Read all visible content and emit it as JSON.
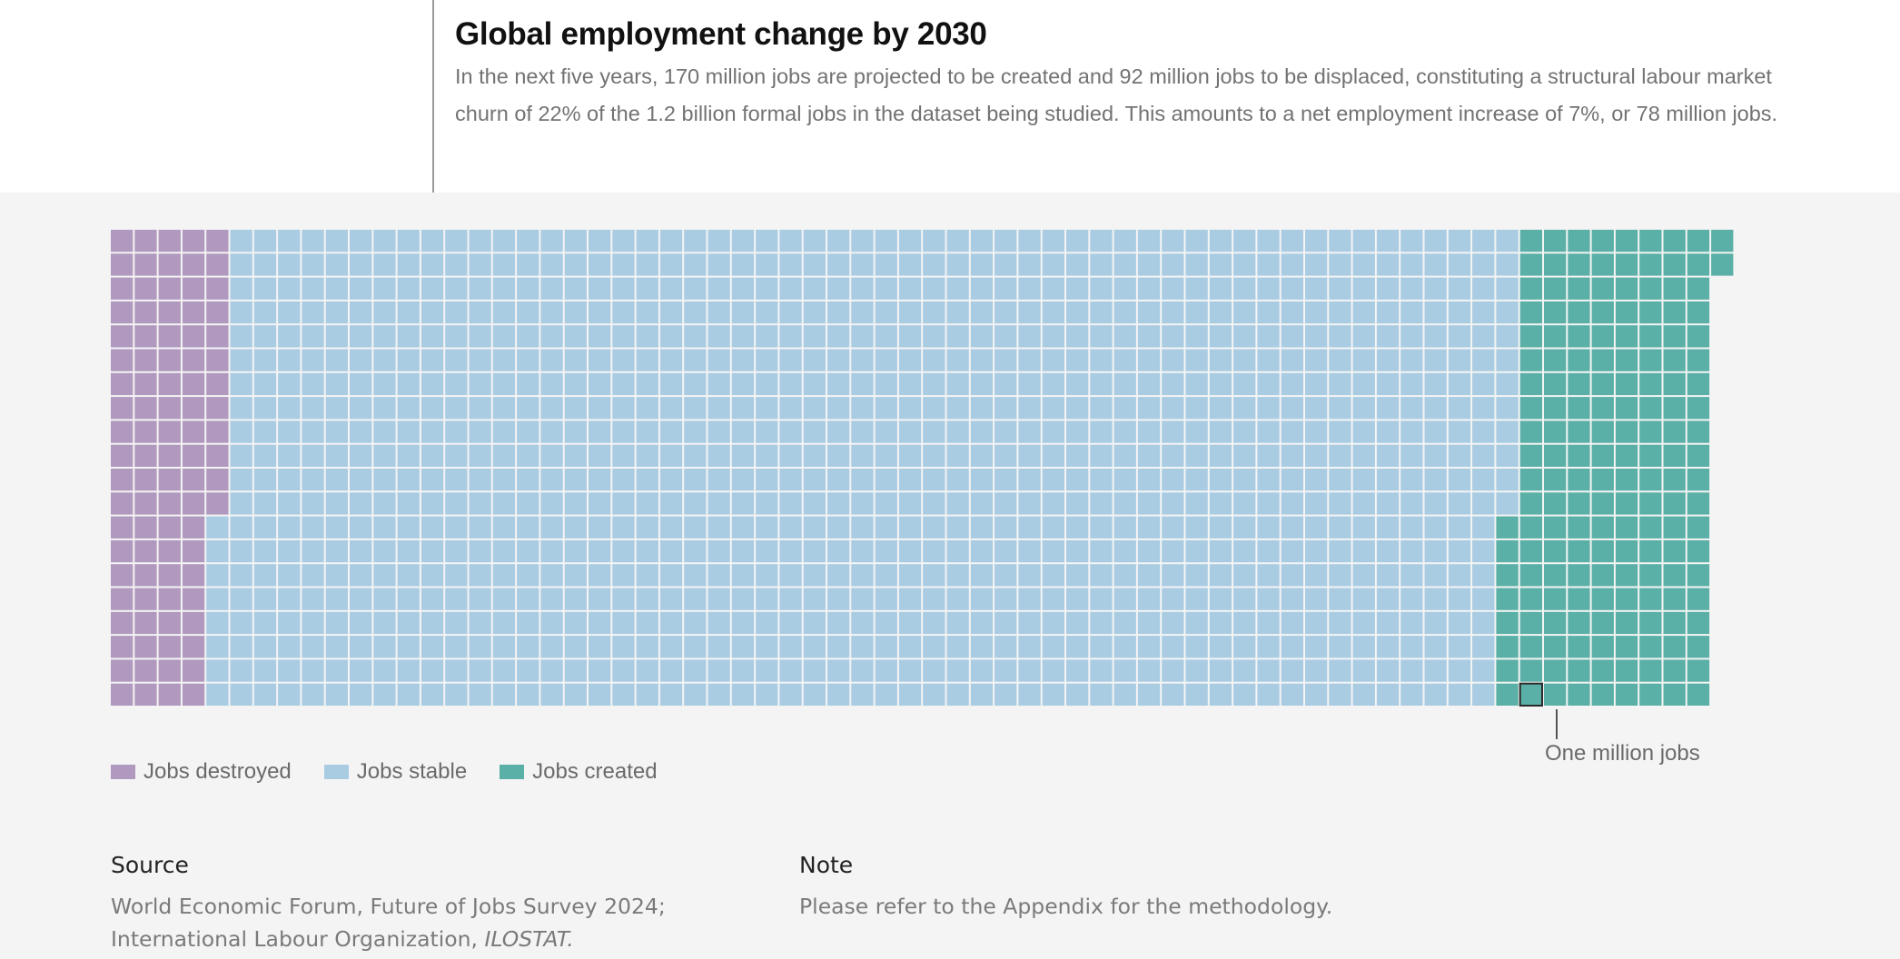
{
  "header": {
    "title": "Global employment change by 2030",
    "description": "In the next five years, 170 million jobs are projected to be created and 92 million jobs to be displaced, constituting a structural labour market churn of 22% of the 1.2 billion formal jobs in the dataset being studied. This amounts to a net employment increase of 7%, or 78 million jobs."
  },
  "chart_data": {
    "type": "waffle",
    "unit": "One million jobs",
    "series": [
      {
        "name": "Jobs destroyed",
        "values": [
          92
        ],
        "color": "#b198bf"
      },
      {
        "name": "Jobs stable",
        "values": [
          1080
        ],
        "color": "#a9cce3"
      },
      {
        "name": "Jobs created",
        "values": [
          170
        ],
        "color": "#5ab0a6"
      }
    ]
  },
  "legend": [
    {
      "label": "Jobs destroyed",
      "color": "#b198bf"
    },
    {
      "label": "Jobs stable",
      "color": "#a9cce3"
    },
    {
      "label": "Jobs created",
      "color": "#5ab0a6"
    }
  ],
  "callout": {
    "label": "One million jobs"
  },
  "footer": {
    "source_heading": "Source",
    "source_line1": "World Economic Forum, Future of Jobs Survey 2024;",
    "source_line2_prefix": "International Labour Organization, ",
    "source_line2_italic": "ILOSTAT.",
    "note_heading": "Note",
    "note_text": "Please refer to the Appendix for the methodology."
  }
}
